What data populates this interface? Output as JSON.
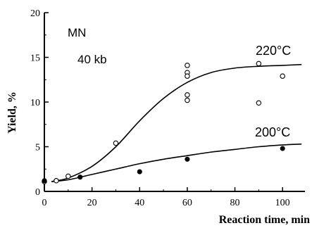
{
  "chart_data": {
    "type": "scatter",
    "xlabel": "Reaction time, min",
    "ylabel": "Yield, %",
    "xlim": [
      0,
      110
    ],
    "ylim": [
      0,
      20
    ],
    "xticks": [
      "0",
      "20",
      "40",
      "60",
      "80",
      "100"
    ],
    "yticks": [
      "0",
      "5",
      "10",
      "15",
      "20"
    ],
    "grid": false,
    "annotations": [
      "MN",
      "40 kb"
    ],
    "series": [
      {
        "name": "220°C",
        "marker": "open-circle",
        "points": [
          {
            "x": 0,
            "y": 1.1
          },
          {
            "x": 5,
            "y": 1.2
          },
          {
            "x": 10,
            "y": 1.7
          },
          {
            "x": 30,
            "y": 5.4
          },
          {
            "x": 60,
            "y": 13.3
          },
          {
            "x": 60,
            "y": 12.9
          },
          {
            "x": 60,
            "y": 14.1
          },
          {
            "x": 60,
            "y": 10.8
          },
          {
            "x": 60,
            "y": 10.2
          },
          {
            "x": 90,
            "y": 14.3
          },
          {
            "x": 90,
            "y": 9.9
          },
          {
            "x": 100,
            "y": 12.9
          }
        ],
        "curve": [
          {
            "x": 3,
            "y": 1.1
          },
          {
            "x": 10,
            "y": 1.5
          },
          {
            "x": 20,
            "y": 2.8
          },
          {
            "x": 30,
            "y": 5.0
          },
          {
            "x": 40,
            "y": 7.9
          },
          {
            "x": 50,
            "y": 10.4
          },
          {
            "x": 60,
            "y": 12.2
          },
          {
            "x": 70,
            "y": 13.3
          },
          {
            "x": 80,
            "y": 13.8
          },
          {
            "x": 90,
            "y": 14.0
          },
          {
            "x": 100,
            "y": 14.1
          },
          {
            "x": 108,
            "y": 14.2
          }
        ]
      },
      {
        "name": "200°C",
        "marker": "filled-circle",
        "points": [
          {
            "x": 0,
            "y": 1.2
          },
          {
            "x": 15,
            "y": 1.6
          },
          {
            "x": 40,
            "y": 2.2
          },
          {
            "x": 60,
            "y": 3.6
          },
          {
            "x": 100,
            "y": 4.8
          }
        ],
        "curve": [
          {
            "x": 3,
            "y": 1.1
          },
          {
            "x": 10,
            "y": 1.3
          },
          {
            "x": 20,
            "y": 1.9
          },
          {
            "x": 30,
            "y": 2.5
          },
          {
            "x": 40,
            "y": 3.1
          },
          {
            "x": 50,
            "y": 3.6
          },
          {
            "x": 60,
            "y": 4.0
          },
          {
            "x": 70,
            "y": 4.4
          },
          {
            "x": 80,
            "y": 4.7
          },
          {
            "x": 90,
            "y": 5.0
          },
          {
            "x": 100,
            "y": 5.2
          },
          {
            "x": 108,
            "y": 5.3
          }
        ]
      }
    ]
  }
}
